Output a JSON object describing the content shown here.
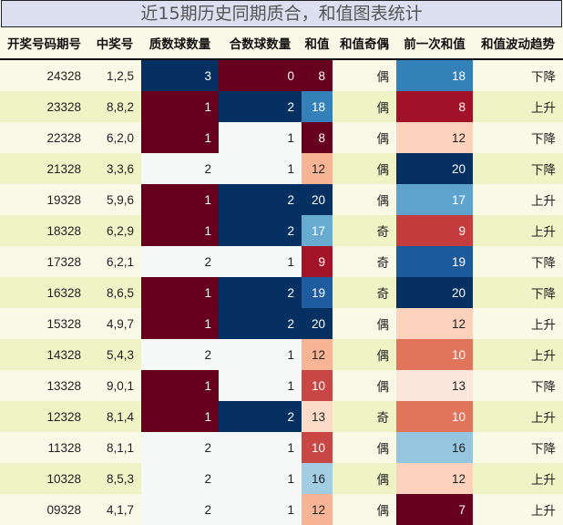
{
  "title": "近15期历史同期质合，和值图表统计",
  "headers": [
    "开奖号码期号",
    "中奖号",
    "质数球数量",
    "合数球数量",
    "和值",
    "和值奇偶",
    "前一次和值",
    "和值波动趋势"
  ],
  "rows": [
    {
      "issue": "24328",
      "numbers": "1,2,5",
      "prime": "3",
      "composite": "0",
      "sum": "8",
      "parity": "偶",
      "prev_sum": "18",
      "trend": "下降",
      "colors": {
        "prime": "#053061",
        "composite": "#67001f",
        "sum": "#67001f",
        "prev_sum": "#3480b9"
      },
      "textc": {
        "prime": "#fff",
        "composite": "#fff",
        "sum": "#fff",
        "prev_sum": "#fff"
      }
    },
    {
      "issue": "23328",
      "numbers": "8,8,2",
      "prime": "1",
      "composite": "2",
      "sum": "18",
      "parity": "偶",
      "prev_sum": "8",
      "trend": "上升",
      "colors": {
        "prime": "#67001f",
        "composite": "#053061",
        "sum": "#3480b9",
        "prev_sum": "#a11228"
      },
      "textc": {
        "prime": "#fff",
        "composite": "#fff",
        "sum": "#fff",
        "prev_sum": "#fff"
      }
    },
    {
      "issue": "22328",
      "numbers": "6,2,0",
      "prime": "1",
      "composite": "1",
      "sum": "8",
      "parity": "偶",
      "prev_sum": "12",
      "trend": "下降",
      "colors": {
        "prime": "#67001f",
        "composite": "#f6f7f7",
        "sum": "#67001f",
        "prev_sum": "#fcd2bc"
      },
      "textc": {
        "prime": "#fff",
        "composite": "#222",
        "sum": "#fff",
        "prev_sum": "#222"
      }
    },
    {
      "issue": "21328",
      "numbers": "3,3,6",
      "prime": "2",
      "composite": "1",
      "sum": "12",
      "parity": "偶",
      "prev_sum": "20",
      "trend": "下降",
      "colors": {
        "prime": "#f6f7f7",
        "composite": "#f6f7f7",
        "sum": "#f7b596",
        "prev_sum": "#053061"
      },
      "textc": {
        "prime": "#222",
        "composite": "#222",
        "sum": "#222",
        "prev_sum": "#fff"
      }
    },
    {
      "issue": "19328",
      "numbers": "5,9,6",
      "prime": "1",
      "composite": "2",
      "sum": "20",
      "parity": "偶",
      "prev_sum": "17",
      "trend": "上升",
      "colors": {
        "prime": "#67001f",
        "composite": "#053061",
        "sum": "#053061",
        "prev_sum": "#5ea3cd"
      },
      "textc": {
        "prime": "#fff",
        "composite": "#fff",
        "sum": "#fff",
        "prev_sum": "#fff"
      }
    },
    {
      "issue": "18328",
      "numbers": "6,2,9",
      "prime": "1",
      "composite": "2",
      "sum": "17",
      "parity": "奇",
      "prev_sum": "9",
      "trend": "上升",
      "colors": {
        "prime": "#67001f",
        "composite": "#053061",
        "sum": "#68abd1",
        "prev_sum": "#c43c3d"
      },
      "textc": {
        "prime": "#fff",
        "composite": "#fff",
        "sum": "#fff",
        "prev_sum": "#fff"
      }
    },
    {
      "issue": "17328",
      "numbers": "6,2,1",
      "prime": "2",
      "composite": "1",
      "sum": "9",
      "parity": "奇",
      "prev_sum": "19",
      "trend": "下降",
      "colors": {
        "prime": "#f6f7f7",
        "composite": "#f6f7f7",
        "sum": "#a41429",
        "prev_sum": "#1d5a9c"
      },
      "textc": {
        "prime": "#222",
        "composite": "#222",
        "sum": "#fff",
        "prev_sum": "#fff"
      }
    },
    {
      "issue": "16328",
      "numbers": "8,6,5",
      "prime": "1",
      "composite": "2",
      "sum": "19",
      "parity": "奇",
      "prev_sum": "20",
      "trend": "下降",
      "colors": {
        "prime": "#67001f",
        "composite": "#053061",
        "sum": "#1f5c9f",
        "prev_sum": "#053061"
      },
      "textc": {
        "prime": "#fff",
        "composite": "#fff",
        "sum": "#fff",
        "prev_sum": "#fff"
      }
    },
    {
      "issue": "15328",
      "numbers": "4,9,7",
      "prime": "1",
      "composite": "2",
      "sum": "20",
      "parity": "偶",
      "prev_sum": "12",
      "trend": "上升",
      "colors": {
        "prime": "#67001f",
        "composite": "#053061",
        "sum": "#053061",
        "prev_sum": "#fcd2bc"
      },
      "textc": {
        "prime": "#fff",
        "composite": "#fff",
        "sum": "#fff",
        "prev_sum": "#222"
      }
    },
    {
      "issue": "14328",
      "numbers": "5,4,3",
      "prime": "2",
      "composite": "1",
      "sum": "12",
      "parity": "偶",
      "prev_sum": "10",
      "trend": "上升",
      "colors": {
        "prime": "#f6f7f7",
        "composite": "#f6f7f7",
        "sum": "#f7b596",
        "prev_sum": "#e0755c"
      },
      "textc": {
        "prime": "#222",
        "composite": "#222",
        "sum": "#222",
        "prev_sum": "#fff"
      }
    },
    {
      "issue": "13328",
      "numbers": "9,0,1",
      "prime": "1",
      "composite": "1",
      "sum": "10",
      "parity": "偶",
      "prev_sum": "13",
      "trend": "下降",
      "colors": {
        "prime": "#67001f",
        "composite": "#f6f7f7",
        "sum": "#c84744",
        "prev_sum": "#fbe6db"
      },
      "textc": {
        "prime": "#fff",
        "composite": "#222",
        "sum": "#fff",
        "prev_sum": "#222"
      }
    },
    {
      "issue": "12328",
      "numbers": "8,1,4",
      "prime": "1",
      "composite": "2",
      "sum": "13",
      "parity": "奇",
      "prev_sum": "10",
      "trend": "上升",
      "colors": {
        "prime": "#67001f",
        "composite": "#053061",
        "sum": "#fcdbc9",
        "prev_sum": "#e0755c"
      },
      "textc": {
        "prime": "#fff",
        "composite": "#fff",
        "sum": "#222",
        "prev_sum": "#fff"
      }
    },
    {
      "issue": "11328",
      "numbers": "8,1,1",
      "prime": "2",
      "composite": "1",
      "sum": "10",
      "parity": "偶",
      "prev_sum": "16",
      "trend": "下降",
      "colors": {
        "prime": "#f6f7f7",
        "composite": "#f6f7f7",
        "sum": "#c84744",
        "prev_sum": "#96c6df"
      },
      "textc": {
        "prime": "#222",
        "composite": "#222",
        "sum": "#fff",
        "prev_sum": "#222"
      }
    },
    {
      "issue": "10328",
      "numbers": "8,5,3",
      "prime": "2",
      "composite": "1",
      "sum": "16",
      "parity": "偶",
      "prev_sum": "12",
      "trend": "上升",
      "colors": {
        "prime": "#f6f7f7",
        "composite": "#f6f7f7",
        "sum": "#a2cde3",
        "prev_sum": "#fcd2bc"
      },
      "textc": {
        "prime": "#222",
        "composite": "#222",
        "sum": "#222",
        "prev_sum": "#222"
      }
    },
    {
      "issue": "09328",
      "numbers": "4,1,7",
      "prime": "2",
      "composite": "1",
      "sum": "12",
      "parity": "偶",
      "prev_sum": "7",
      "trend": "上升",
      "colors": {
        "prime": "#f6f7f7",
        "composite": "#f6f7f7",
        "sum": "#f7b596",
        "prev_sum": "#67001f"
      },
      "textc": {
        "prime": "#222",
        "composite": "#222",
        "sum": "#222",
        "prev_sum": "#fff"
      }
    }
  ]
}
